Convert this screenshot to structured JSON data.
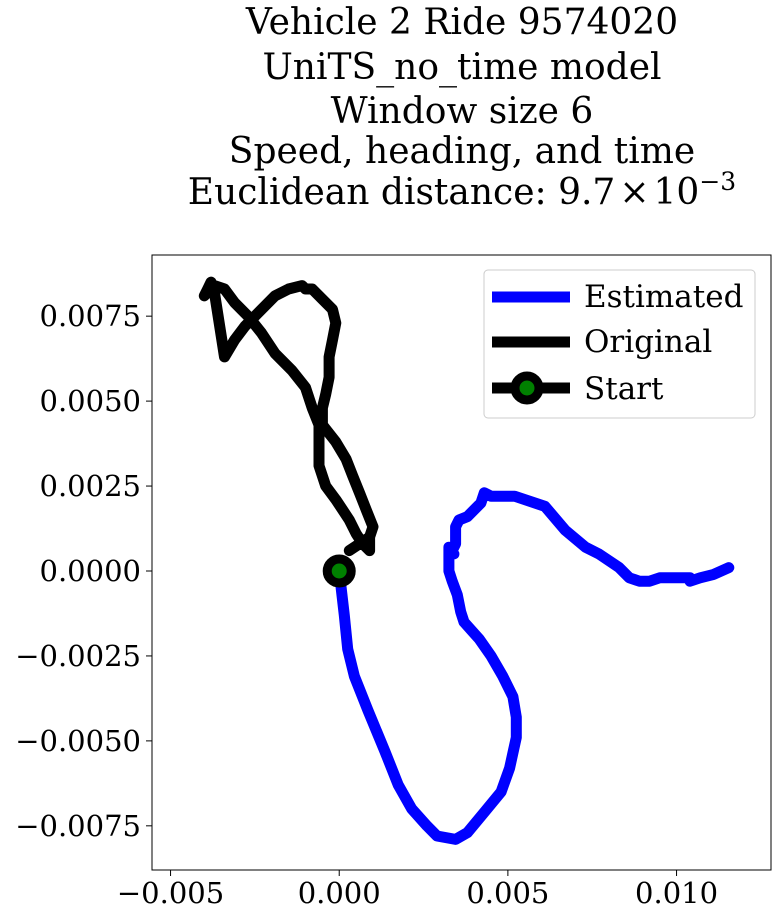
{
  "chart_data": {
    "type": "line",
    "title_lines": [
      "Vehicle 2 Ride 9574020",
      "UniTS_no_time model",
      "Window size 6",
      "Speed, heading, and time"
    ],
    "title_last_prefix": "Euclidean distance: 9.7",
    "title_last_times": "×",
    "title_last_base": "10",
    "title_last_exp": "−3",
    "xlim": [
      -0.00555,
      0.0128
    ],
    "ylim": [
      -0.0088,
      0.0093
    ],
    "xticks": [
      -0.005,
      0.0,
      0.005,
      0.01
    ],
    "xtick_labels": [
      "−0.005",
      "0.000",
      "0.005",
      "0.010"
    ],
    "yticks": [
      0.0075,
      0.005,
      0.0025,
      0.0,
      -0.0025,
      -0.005,
      -0.0075
    ],
    "ytick_labels": [
      "0.0075",
      "0.0050",
      "0.0025",
      "0.0000",
      "−0.0025",
      "−0.0050",
      "−0.0075"
    ],
    "legend_position": "upper right",
    "series": [
      {
        "name": "Estimated",
        "color": "#0000ff",
        "x": [
          0.0,
          0.00015,
          0.00025,
          0.00045,
          0.00085,
          0.00135,
          0.00175,
          0.00215,
          0.0026,
          0.0029,
          0.00345,
          0.0038,
          0.0043,
          0.0048,
          0.00505,
          0.00525,
          0.00525,
          0.00515,
          0.00485,
          0.0045,
          0.00415,
          0.0037,
          0.0036,
          0.0035,
          0.00335,
          0.00325,
          0.00325,
          0.0034,
          0.0033,
          0.00345,
          0.00345,
          0.00355,
          0.0038,
          0.0042,
          0.0043,
          0.0045,
          0.0052,
          0.0061,
          0.0067,
          0.0073,
          0.0077,
          0.0083,
          0.0086,
          0.0089,
          0.0092,
          0.0095,
          0.0101,
          0.0104,
          0.0104,
          0.0107,
          0.0111,
          0.01155
        ],
        "y": [
          0.0,
          -0.0013,
          -0.0023,
          -0.0031,
          -0.0041,
          -0.0053,
          -0.0063,
          -0.007,
          -0.0075,
          -0.0078,
          -0.0079,
          -0.0077,
          -0.0071,
          -0.0065,
          -0.0058,
          -0.0049,
          -0.0043,
          -0.0037,
          -0.0031,
          -0.0025,
          -0.002,
          -0.0015,
          -0.0012,
          -0.0007,
          -0.0003,
          0.0,
          0.0007,
          0.0005,
          0.0005,
          0.0008,
          0.0013,
          0.0015,
          0.0016,
          0.002,
          0.0023,
          0.0022,
          0.0022,
          0.0019,
          0.0012,
          0.0007,
          0.0005,
          0.0001,
          -0.0002,
          -0.0003,
          -0.0003,
          -0.0002,
          -0.0002,
          -0.0002,
          -0.0003,
          -0.0002,
          -0.0001,
          0.0001
        ]
      },
      {
        "name": "Original",
        "color": "#000000",
        "x": [
          0.0003,
          0.0006,
          0.0009,
          0.001,
          0.0008,
          0.0006,
          0.0004,
          0.0002,
          -0.0001,
          -0.0005,
          -0.0005,
          -0.0004,
          -0.0003,
          -0.0003,
          -0.0003,
          -0.0002,
          -0.0001,
          -0.0002,
          -0.0005,
          -0.0008,
          -0.001,
          -0.0011,
          -0.0015,
          -0.0019,
          -0.0023,
          -0.0028,
          -0.0031,
          -0.0034,
          -0.0037,
          -0.0038,
          -0.0039,
          -0.004,
          -0.0037,
          -0.0034,
          -0.0031,
          -0.0027,
          -0.0023,
          -0.0019,
          -0.0014,
          -0.001,
          -0.0008,
          -0.0006,
          -0.0006,
          -0.0006,
          -0.0004,
          -0.0001,
          0.0001,
          0.0003,
          0.0005,
          0.0007,
          0.0009,
          0.0009
        ],
        "y": [
          0.0006,
          0.0008,
          0.001,
          0.0013,
          0.0018,
          0.0023,
          0.0028,
          0.0033,
          0.0038,
          0.0043,
          0.0048,
          0.0052,
          0.0057,
          0.0059,
          0.0063,
          0.0068,
          0.0073,
          0.0077,
          0.008,
          0.0083,
          0.0083,
          0.0084,
          0.0083,
          0.0081,
          0.0077,
          0.0072,
          0.0068,
          0.0063,
          0.0082,
          0.0085,
          0.0083,
          0.0081,
          0.0084,
          0.0083,
          0.0079,
          0.0075,
          0.007,
          0.0064,
          0.0059,
          0.0054,
          0.0048,
          0.0043,
          0.0036,
          0.0031,
          0.0025,
          0.0021,
          0.0018,
          0.0015,
          0.0011,
          0.0008,
          0.0006,
          0.001
        ]
      }
    ],
    "start": {
      "name": "Start",
      "x": 0.0,
      "y": 0.0,
      "marker_face": "#008000",
      "marker_edge": "#000000",
      "line_color": "#000000"
    }
  }
}
